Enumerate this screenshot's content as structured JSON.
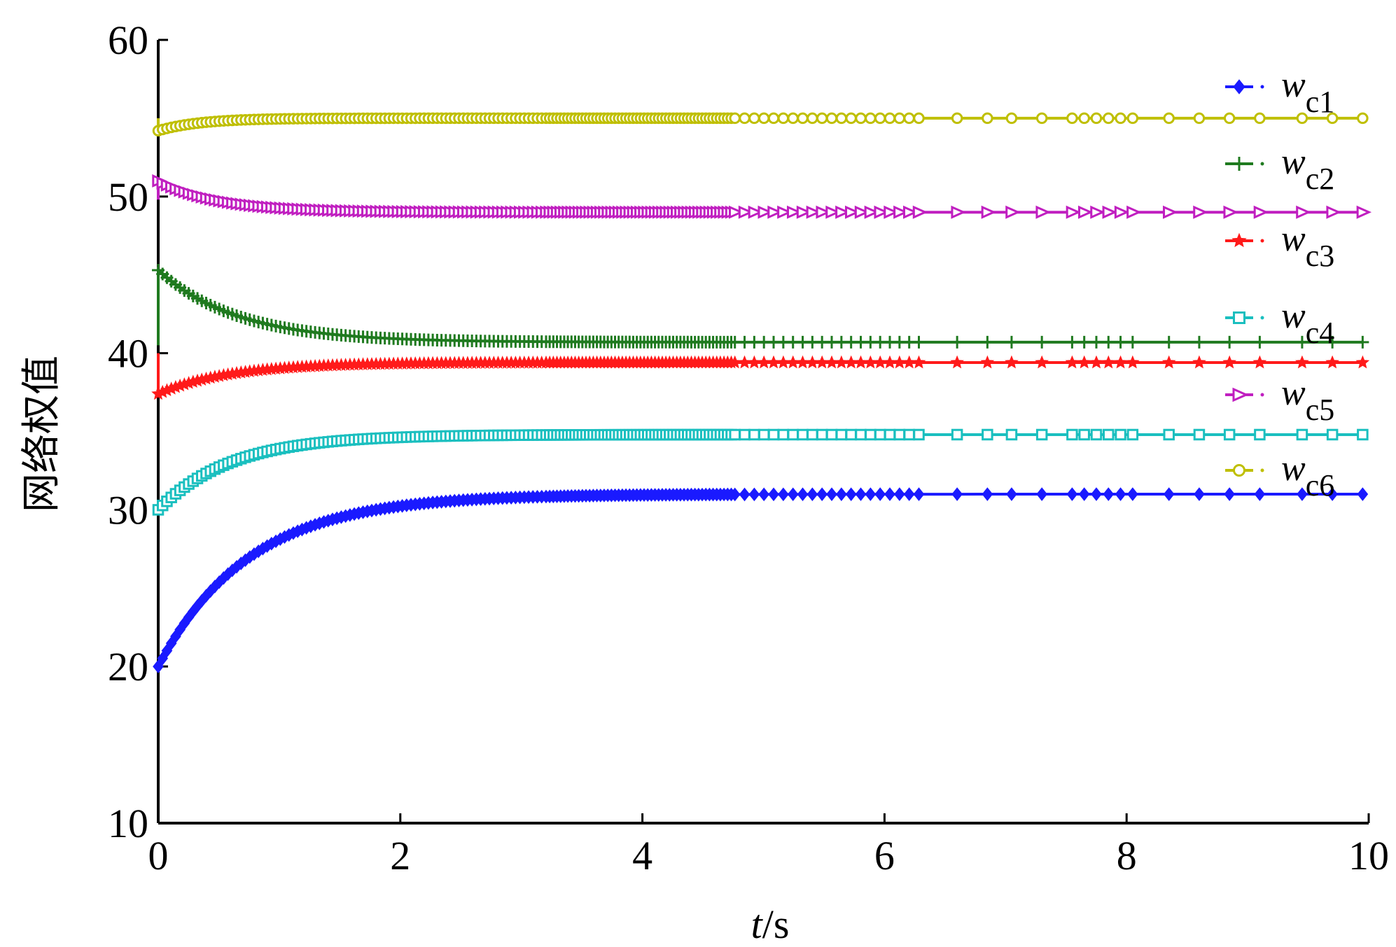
{
  "chart_data": {
    "type": "line",
    "title": "",
    "xlabel_italic": "t",
    "xlabel_unit": "/s",
    "ylabel": "网络权值",
    "xlim": [
      0,
      10
    ],
    "ylim": [
      10,
      60
    ],
    "xticks": [
      "0",
      "2",
      "4",
      "6",
      "8",
      "10"
    ],
    "yticks": [
      "10",
      "20",
      "30",
      "40",
      "50",
      "60"
    ],
    "legend_position": "top-right",
    "series": [
      {
        "name_main": "w",
        "name_sub": "c1",
        "color": "#1a1aff",
        "marker": "diamond",
        "initial": 20,
        "final": 31.0,
        "tau": 0.75
      },
      {
        "name_main": "w",
        "name_sub": "c2",
        "color": "#1f7a1f",
        "marker": "plus",
        "initial": 45.3,
        "final": 40.7,
        "tau": 0.65,
        "start": 40.5
      },
      {
        "name_main": "w",
        "name_sub": "c3",
        "color": "#ff1a1a",
        "marker": "star",
        "initial": 37.4,
        "final": 39.4,
        "tau": 0.6,
        "start": 40.0
      },
      {
        "name_main": "w",
        "name_sub": "c4",
        "color": "#1abfbf",
        "marker": "square",
        "initial": 30.0,
        "final": 34.8,
        "tau": 0.6
      },
      {
        "name_main": "w",
        "name_sub": "c5",
        "color": "#c01fc0",
        "marker": "triangle-right",
        "initial": 51.0,
        "final": 49.0,
        "tau": 0.5,
        "start": 49.8
      },
      {
        "name_main": "w",
        "name_sub": "c6",
        "color": "#bfbf00",
        "marker": "circle",
        "initial": 54.2,
        "final": 55.0,
        "tau": 0.35,
        "start": 55.0
      }
    ]
  }
}
